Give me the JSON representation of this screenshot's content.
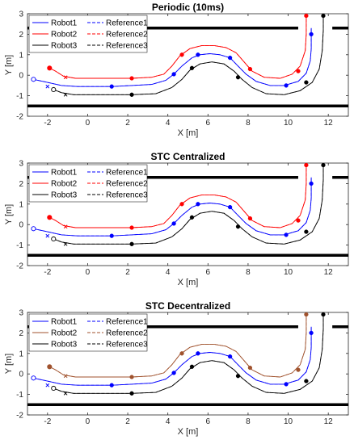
{
  "chart_data": [
    {
      "type": "line",
      "title": "Periodic (10ms)",
      "xlabel": "X [m]",
      "ylabel": "Y [m]",
      "xlim": [
        -3,
        13
      ],
      "ylim": [
        -2,
        3
      ],
      "xticks": [
        -2,
        0,
        2,
        4,
        6,
        8,
        10,
        12
      ],
      "yticks": [
        -2,
        -1,
        0,
        1,
        2,
        3
      ],
      "legend": {
        "location": "top-left",
        "entries": [
          "Robot1",
          "Robot2",
          "Robot3",
          "Reference1",
          "Reference2",
          "Reference3"
        ]
      },
      "walls": [
        {
          "y": 2.3,
          "x": [
            -3,
            10.5
          ]
        },
        {
          "y": 2.3,
          "x": [
            12.2,
            13
          ]
        },
        {
          "y": -1.5,
          "x": [
            -3,
            13
          ]
        }
      ],
      "marker_colors": {
        "Robot1": "#0000ff",
        "Robot2": "#ff0000",
        "Robot3": "#000000"
      }
    },
    {
      "type": "line",
      "title": "STC Centralized",
      "xlabel": "X [m]",
      "ylabel": "Y [m]",
      "xlim": [
        -3,
        13
      ],
      "ylim": [
        -2,
        3
      ],
      "xticks": [
        -2,
        0,
        2,
        4,
        6,
        8,
        10,
        12
      ],
      "yticks": [
        -2,
        -1,
        0,
        1,
        2,
        3
      ],
      "legend": {
        "location": "top-left",
        "entries": [
          "Robot1",
          "Robot2",
          "Robot3",
          "Reference1",
          "Reference2",
          "Reference3"
        ]
      },
      "walls": [
        {
          "y": 2.3,
          "x": [
            -3,
            10.5
          ]
        },
        {
          "y": 2.3,
          "x": [
            12.2,
            13
          ]
        },
        {
          "y": -1.5,
          "x": [
            -3,
            13
          ]
        }
      ],
      "marker_colors": {
        "Robot1": "#0000ff",
        "Robot2": "#ff0000",
        "Robot3": "#000000"
      }
    },
    {
      "type": "line",
      "title": "STC Decentralized",
      "xlabel": "X [m]",
      "ylabel": "Y [m]",
      "xlim": [
        -3,
        13
      ],
      "ylim": [
        -2,
        3
      ],
      "xticks": [
        -2,
        0,
        2,
        4,
        6,
        8,
        10,
        12
      ],
      "yticks": [
        -2,
        -1,
        0,
        1,
        2,
        3
      ],
      "legend": {
        "location": "top-left",
        "entries": [
          "Robot1",
          "Robot2",
          "Robot3",
          "Reference1",
          "Reference2",
          "Reference3"
        ]
      },
      "walls": [
        {
          "y": 2.3,
          "x": [
            -3,
            10.5
          ]
        },
        {
          "y": 2.3,
          "x": [
            12.2,
            13
          ]
        },
        {
          "y": -1.5,
          "x": [
            -3,
            13
          ]
        }
      ],
      "marker_colors": {
        "Robot1": "#0000ff",
        "Robot2": "#a0522d",
        "Robot3": "#000000"
      }
    }
  ],
  "series": [
    {
      "name": "Robot1",
      "color": "#0000ff",
      "start": [
        -2.7,
        -0.2
      ],
      "points": [
        [
          -2.7,
          -0.2
        ],
        [
          -2.0,
          -0.35
        ],
        [
          -1.3,
          -0.5
        ],
        [
          -0.5,
          -0.55
        ],
        [
          0.5,
          -0.55
        ],
        [
          1.2,
          -0.55
        ],
        [
          2.2,
          -0.5
        ],
        [
          3.2,
          -0.45
        ],
        [
          3.9,
          -0.25
        ],
        [
          4.3,
          0.05
        ],
        [
          4.7,
          0.45
        ],
        [
          5.2,
          0.85
        ],
        [
          5.6,
          1.0
        ],
        [
          6.1,
          1.05
        ],
        [
          6.6,
          1.0
        ],
        [
          7.1,
          0.85
        ],
        [
          7.5,
          0.45
        ],
        [
          7.9,
          0.05
        ],
        [
          8.4,
          -0.3
        ],
        [
          9.1,
          -0.5
        ],
        [
          9.8,
          -0.5
        ],
        [
          10.5,
          -0.3
        ],
        [
          10.9,
          0.1
        ],
        [
          11.1,
          0.7
        ],
        [
          11.15,
          1.3
        ],
        [
          11.15,
          2.0
        ],
        [
          11.15,
          2.3
        ]
      ],
      "markers": [
        [
          1.2,
          -0.55
        ],
        [
          4.3,
          0.05
        ],
        [
          5.5,
          1.0
        ],
        [
          7.1,
          0.85
        ],
        [
          9.9,
          -0.5
        ],
        [
          11.15,
          2.0
        ]
      ]
    },
    {
      "name": "Robot2",
      "color": "#ff0000",
      "start": [
        -1.9,
        0.35
      ],
      "points": [
        [
          -1.9,
          0.35
        ],
        [
          -1.6,
          0.2
        ],
        [
          -1.2,
          -0.05
        ],
        [
          -0.6,
          -0.15
        ],
        [
          0.5,
          -0.15
        ],
        [
          2.2,
          -0.15
        ],
        [
          3.2,
          -0.1
        ],
        [
          3.8,
          0.05
        ],
        [
          4.2,
          0.45
        ],
        [
          4.6,
          0.95
        ],
        [
          5.1,
          1.3
        ],
        [
          5.7,
          1.45
        ],
        [
          6.3,
          1.45
        ],
        [
          6.9,
          1.35
        ],
        [
          7.4,
          1.1
        ],
        [
          7.8,
          0.65
        ],
        [
          8.2,
          0.2
        ],
        [
          8.8,
          -0.1
        ],
        [
          9.6,
          -0.15
        ],
        [
          10.2,
          0.05
        ],
        [
          10.6,
          0.45
        ],
        [
          10.85,
          1.2
        ],
        [
          10.9,
          2.0
        ],
        [
          10.9,
          2.9
        ]
      ],
      "markers": [
        [
          -1.9,
          0.35
        ],
        [
          2.2,
          -0.15
        ],
        [
          4.7,
          1.0
        ],
        [
          8.1,
          0.3
        ],
        [
          10.5,
          0.2
        ],
        [
          10.9,
          2.9
        ]
      ]
    },
    {
      "name": "Robot3",
      "color": "#000000",
      "start": [
        -1.7,
        -0.7
      ],
      "points": [
        [
          -1.7,
          -0.7
        ],
        [
          -1.3,
          -0.85
        ],
        [
          -0.7,
          -0.95
        ],
        [
          0.5,
          -0.95
        ],
        [
          2.2,
          -0.95
        ],
        [
          3.4,
          -0.9
        ],
        [
          4.2,
          -0.6
        ],
        [
          4.7,
          -0.2
        ],
        [
          5.1,
          0.25
        ],
        [
          5.6,
          0.55
        ],
        [
          6.2,
          0.65
        ],
        [
          6.8,
          0.55
        ],
        [
          7.3,
          0.2
        ],
        [
          7.7,
          -0.2
        ],
        [
          8.2,
          -0.6
        ],
        [
          8.9,
          -0.9
        ],
        [
          9.8,
          -0.95
        ],
        [
          10.6,
          -0.75
        ],
        [
          11.2,
          -0.35
        ],
        [
          11.55,
          0.3
        ],
        [
          11.7,
          1.2
        ],
        [
          11.75,
          2.2
        ],
        [
          11.75,
          2.9
        ]
      ],
      "markers": [
        [
          2.2,
          -0.95
        ],
        [
          5.2,
          0.35
        ],
        [
          7.5,
          -0.1
        ],
        [
          10.9,
          -0.35
        ],
        [
          11.75,
          2.9
        ]
      ]
    }
  ],
  "reference_markers": [
    {
      "name": "Reference1",
      "at": [
        -2.0,
        -0.55
      ]
    },
    {
      "name": "Reference2",
      "at": [
        -1.1,
        -0.1
      ]
    },
    {
      "name": "Reference3",
      "at": [
        -1.1,
        -0.95
      ]
    }
  ]
}
